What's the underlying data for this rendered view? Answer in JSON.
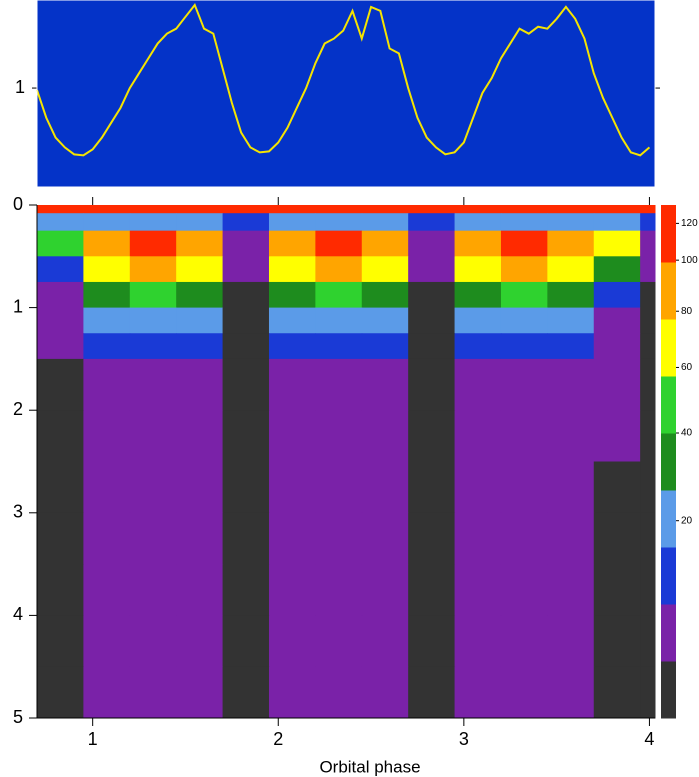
{
  "chart_data": [
    {
      "type": "line",
      "x": [
        0.7,
        0.75,
        0.8,
        0.85,
        0.9,
        0.95,
        1.0,
        1.05,
        1.1,
        1.15,
        1.2,
        1.25,
        1.3,
        1.35,
        1.4,
        1.45,
        1.5,
        1.55,
        1.6,
        1.65,
        1.7,
        1.75,
        1.8,
        1.85,
        1.9,
        1.95,
        2.0,
        2.05,
        2.1,
        2.15,
        2.2,
        2.25,
        2.3,
        2.35,
        2.4,
        2.45,
        2.5,
        2.55,
        2.6,
        2.65,
        2.7,
        2.75,
        2.8,
        2.85,
        2.9,
        2.95,
        3.0,
        3.05,
        3.1,
        3.15,
        3.2,
        3.25,
        3.3,
        3.35,
        3.4,
        3.45,
        3.5,
        3.55,
        3.6,
        3.65,
        3.7,
        3.75,
        3.8,
        3.85,
        3.9,
        3.95,
        4.0
      ],
      "series": [
        {
          "color": "#f5e400",
          "values": [
            0.98,
            0.7,
            0.5,
            0.4,
            0.33,
            0.32,
            0.38,
            0.5,
            0.65,
            0.8,
            1.0,
            1.15,
            1.3,
            1.45,
            1.55,
            1.6,
            1.72,
            1.84,
            1.6,
            1.55,
            1.2,
            0.85,
            0.55,
            0.4,
            0.35,
            0.36,
            0.45,
            0.6,
            0.8,
            1.0,
            1.25,
            1.45,
            1.5,
            1.58,
            1.78,
            1.5,
            1.82,
            1.78,
            1.4,
            1.35,
            1.0,
            0.7,
            0.5,
            0.4,
            0.33,
            0.35,
            0.45,
            0.7,
            0.95,
            1.1,
            1.3,
            1.45,
            1.6,
            1.55,
            1.62,
            1.6,
            1.7,
            1.82,
            1.7,
            1.5,
            1.15,
            0.9,
            0.7,
            0.5,
            0.35,
            0.32,
            0.4
          ]
        }
      ],
      "background": "#0433c8",
      "xlim": [
        0.7,
        4.03
      ],
      "ylim": [
        0,
        1.89
      ],
      "yticks": [
        1
      ]
    },
    {
      "type": "heatmap",
      "xlabel": "Orbital phase",
      "xbins": [
        0.7,
        0.95,
        1.2,
        1.45,
        1.7,
        1.95,
        2.2,
        2.45,
        2.7,
        2.95,
        3.2,
        3.45,
        3.7,
        3.95,
        4.03
      ],
      "ybins": [
        0,
        0.08,
        0.25,
        0.5,
        0.75,
        1,
        1.25,
        1.5,
        2,
        2.5,
        3,
        3.5,
        4,
        4.5,
        5
      ],
      "z": [
        [
          125,
          125,
          125,
          125,
          125,
          125,
          125,
          125,
          125,
          125,
          125,
          125,
          125,
          125
        ],
        [
          18,
          20,
          25,
          20,
          10,
          20,
          25,
          20,
          10,
          20,
          25,
          20,
          20,
          10
        ],
        [
          50,
          90,
          110,
          90,
          7,
          90,
          110,
          90,
          7,
          90,
          110,
          90,
          60,
          7
        ],
        [
          12,
          65,
          80,
          65,
          5,
          65,
          80,
          65,
          5,
          65,
          80,
          65,
          30,
          5
        ],
        [
          8,
          30,
          40,
          30,
          4,
          30,
          40,
          30,
          4,
          30,
          40,
          30,
          12,
          4
        ],
        [
          6,
          15,
          16,
          15,
          3,
          15,
          16,
          15,
          3,
          15,
          16,
          15,
          8,
          3
        ],
        [
          5,
          10,
          10,
          10,
          3,
          10,
          10,
          10,
          3,
          10,
          10,
          10,
          6,
          3
        ],
        [
          4,
          7,
          8,
          7,
          3,
          7,
          8,
          7,
          3,
          7,
          8,
          7,
          5,
          3
        ],
        [
          4,
          7,
          7,
          7,
          3,
          7,
          7,
          7,
          3,
          7,
          7,
          7,
          5,
          3
        ],
        [
          4,
          6,
          6,
          6,
          3,
          6,
          6,
          6,
          3,
          6,
          6,
          6,
          4,
          3
        ],
        [
          4,
          6,
          6,
          6,
          3,
          6,
          6,
          6,
          3,
          6,
          6,
          6,
          4,
          3
        ],
        [
          4,
          5,
          5,
          5,
          4,
          5,
          5,
          5,
          4,
          5,
          5,
          5,
          4,
          4
        ],
        [
          4,
          5,
          5,
          5,
          4,
          5,
          5,
          5,
          4,
          5,
          5,
          5,
          4,
          4
        ],
        [
          4,
          5,
          5,
          5,
          4,
          5,
          5,
          5,
          4,
          5,
          5,
          5,
          4,
          4
        ]
      ],
      "colorbar": {
        "bounds": [
          0,
          5,
          9,
          14,
          27,
          40,
          57,
          77,
          99,
          130
        ],
        "colors": [
          "#333333",
          "#7a22a8",
          "#1a3ad6",
          "#5b9be8",
          "#1e8c1e",
          "#2fd22f",
          "#ffff00",
          "#ffa500",
          "#ff2a00"
        ],
        "ticks": [
          20,
          40,
          60,
          80,
          100,
          120
        ]
      },
      "xlim": [
        0.7,
        4.03
      ],
      "ylim": [
        0,
        5
      ],
      "xticks": [
        1,
        2,
        3,
        4
      ],
      "yticks": [
        0,
        1,
        2,
        3,
        4,
        5
      ]
    }
  ]
}
